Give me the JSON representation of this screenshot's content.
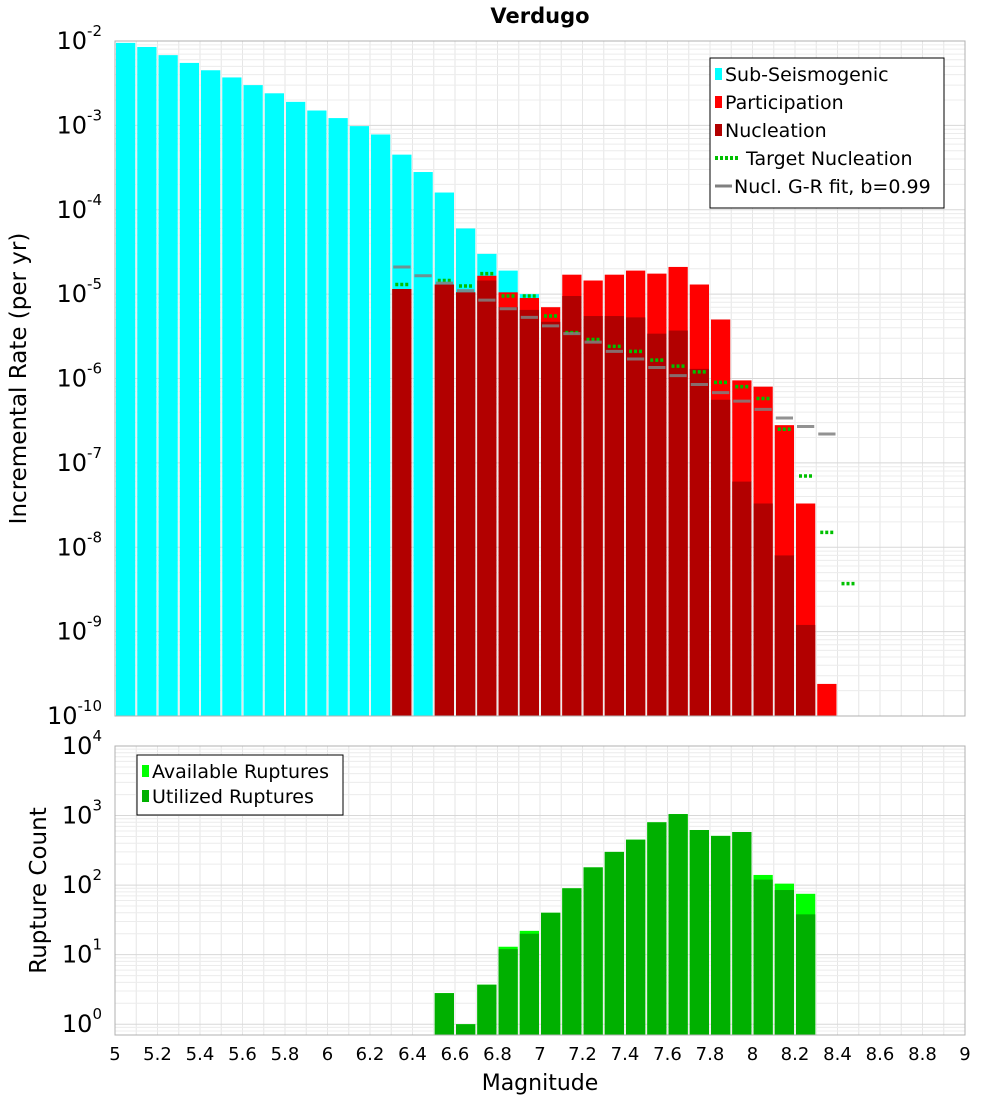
{
  "chart_data": [
    {
      "type": "bar",
      "title": "Verdugo",
      "xlabel": "",
      "ylabel": "Incremental Rate (per yr)",
      "yscale": "log",
      "xlim": [
        5,
        9
      ],
      "ylim": [
        1e-10,
        0.01
      ],
      "x_ticks": [
        "5",
        "5.2",
        "5.4",
        "5.6",
        "5.8",
        "6",
        "6.2",
        "6.4",
        "6.6",
        "6.8",
        "7",
        "7.2",
        "7.4",
        "7.6",
        "7.8",
        "8",
        "8.2",
        "8.4",
        "8.6",
        "8.8",
        "9"
      ],
      "y_tick_exponents": [
        "-10",
        "-9",
        "-8",
        "-7",
        "-6",
        "-5",
        "-4",
        "-3",
        "-2"
      ],
      "grid": true,
      "legend_position": "top-right",
      "legend": [
        {
          "label": "Sub-Seismogenic",
          "color": "#00ffff"
        },
        {
          "label": "Participation",
          "color": "#ff0000"
        },
        {
          "label": "Nucleation",
          "color": "#b20000"
        },
        {
          "label": "Target Nucleation",
          "color": "#00c000"
        },
        {
          "label": "Nucl. G-R fit, b=0.99",
          "color": "#808080"
        }
      ],
      "series": [
        {
          "name": "Sub-Seismogenic",
          "color": "#00ffff",
          "points": [
            [
              5.05,
              0.0095
            ],
            [
              5.15,
              0.0085
            ],
            [
              5.25,
              0.0068
            ],
            [
              5.35,
              0.0055
            ],
            [
              5.45,
              0.0045
            ],
            [
              5.55,
              0.0037
            ],
            [
              5.65,
              0.003
            ],
            [
              5.75,
              0.0024
            ],
            [
              5.85,
              0.0019
            ],
            [
              5.95,
              0.0015
            ],
            [
              6.05,
              0.00122
            ],
            [
              6.15,
              0.00098
            ],
            [
              6.25,
              0.00078
            ],
            [
              6.35,
              0.00045
            ],
            [
              6.45,
              0.00028
            ],
            [
              6.55,
              0.00016
            ],
            [
              6.65,
              6e-05
            ],
            [
              6.75,
              3e-05
            ],
            [
              6.85,
              1.9e-05
            ],
            [
              6.95,
              1e-05
            ]
          ]
        },
        {
          "name": "Participation",
          "color": "#ff0000",
          "points": [
            [
              6.35,
              1.15e-05
            ],
            [
              6.55,
              1.3e-05
            ],
            [
              6.65,
              1.05e-05
            ],
            [
              6.75,
              1.65e-05
            ],
            [
              6.85,
              1.05e-05
            ],
            [
              6.95,
              9e-06
            ],
            [
              7.05,
              7e-06
            ],
            [
              7.15,
              1.7e-05
            ],
            [
              7.25,
              1.45e-05
            ],
            [
              7.35,
              1.7e-05
            ],
            [
              7.45,
              1.9e-05
            ],
            [
              7.55,
              1.75e-05
            ],
            [
              7.65,
              2.1e-05
            ],
            [
              7.75,
              1.3e-05
            ],
            [
              7.85,
              5e-06
            ],
            [
              7.95,
              9.5e-07
            ],
            [
              8.05,
              8e-07
            ],
            [
              8.15,
              2.8e-07
            ],
            [
              8.25,
              3.3e-08
            ],
            [
              8.35,
              2.4e-10
            ]
          ]
        },
        {
          "name": "Nucleation",
          "color": "#b20000",
          "points": [
            [
              6.35,
              1.15e-05
            ],
            [
              6.55,
              1.3e-05
            ],
            [
              6.65,
              1.05e-05
            ],
            [
              6.75,
              1.45e-05
            ],
            [
              6.85,
              7e-06
            ],
            [
              6.95,
              6.5e-06
            ],
            [
              7.05,
              4.7e-06
            ],
            [
              7.15,
              9.5e-06
            ],
            [
              7.25,
              5.5e-06
            ],
            [
              7.35,
              5.5e-06
            ],
            [
              7.45,
              5.3e-06
            ],
            [
              7.55,
              3.4e-06
            ],
            [
              7.65,
              3.7e-06
            ],
            [
              7.75,
              1.3e-06
            ],
            [
              7.85,
              5.6e-07
            ],
            [
              7.95,
              6e-08
            ],
            [
              8.05,
              3.3e-08
            ],
            [
              8.15,
              8e-09
            ],
            [
              8.25,
              1.2e-09
            ]
          ]
        },
        {
          "name": "Target Nucleation",
          "color": "#00c000",
          "points": [
            [
              6.35,
              1.3e-05
            ],
            [
              6.55,
              1.45e-05
            ],
            [
              6.65,
              1.25e-05
            ],
            [
              6.75,
              1.75e-05
            ],
            [
              6.85,
              9.5e-06
            ],
            [
              6.95,
              9.5e-06
            ],
            [
              7.05,
              5.5e-06
            ],
            [
              7.15,
              3.5e-06
            ],
            [
              7.25,
              2.9e-06
            ],
            [
              7.35,
              2.4e-06
            ],
            [
              7.45,
              2.1e-06
            ],
            [
              7.55,
              1.65e-06
            ],
            [
              7.65,
              1.4e-06
            ],
            [
              7.75,
              1.2e-06
            ],
            [
              7.85,
              9e-07
            ],
            [
              7.95,
              8e-07
            ],
            [
              8.05,
              5.8e-07
            ],
            [
              8.15,
              2.5e-07
            ],
            [
              8.25,
              7e-08
            ],
            [
              8.35,
              1.5e-08
            ],
            [
              8.45,
              3.7e-09
            ]
          ]
        },
        {
          "name": "Nucl. G-R fit, b=0.99",
          "color": "#808080",
          "points": [
            [
              6.35,
              2.1e-05
            ],
            [
              6.45,
              1.65e-05
            ],
            [
              6.55,
              1.35e-05
            ],
            [
              6.65,
              1.1e-05
            ],
            [
              6.75,
              8.5e-06
            ],
            [
              6.85,
              6.7e-06
            ],
            [
              6.95,
              5.3e-06
            ],
            [
              7.05,
              4.2e-06
            ],
            [
              7.15,
              3.4e-06
            ],
            [
              7.25,
              2.7e-06
            ],
            [
              7.35,
              2.1e-06
            ],
            [
              7.45,
              1.7e-06
            ],
            [
              7.55,
              1.35e-06
            ],
            [
              7.65,
              1.08e-06
            ],
            [
              7.75,
              8.5e-07
            ],
            [
              7.85,
              6.8e-07
            ],
            [
              7.95,
              5.4e-07
            ],
            [
              8.05,
              4.3e-07
            ],
            [
              8.15,
              3.4e-07
            ],
            [
              8.25,
              2.7e-07
            ],
            [
              8.35,
              2.2e-07
            ]
          ]
        }
      ]
    },
    {
      "type": "bar",
      "title": "",
      "xlabel": "Magnitude",
      "ylabel": "Rupture Count",
      "yscale": "log",
      "xlim": [
        5,
        9
      ],
      "ylim": [
        0.7,
        10000
      ],
      "x_ticks": [
        "5",
        "5.2",
        "5.4",
        "5.6",
        "5.8",
        "6",
        "6.2",
        "6.4",
        "6.6",
        "6.8",
        "7",
        "7.2",
        "7.4",
        "7.6",
        "7.8",
        "8",
        "8.2",
        "8.4",
        "8.6",
        "8.8",
        "9"
      ],
      "y_tick_exponents": [
        "0",
        "1",
        "2",
        "3",
        "4"
      ],
      "grid": true,
      "legend_position": "top-left",
      "legend": [
        {
          "label": "Available Ruptures",
          "color": "#00ff00"
        },
        {
          "label": "Utilized Ruptures",
          "color": "#00b000"
        }
      ],
      "series": [
        {
          "name": "Available Ruptures",
          "color": "#00ff00",
          "points": [
            [
              6.55,
              2.8
            ],
            [
              6.65,
              1
            ],
            [
              6.75,
              3.7
            ],
            [
              6.85,
              13
            ],
            [
              6.95,
              22
            ],
            [
              7.05,
              40
            ],
            [
              7.15,
              90
            ],
            [
              7.25,
              180
            ],
            [
              7.35,
              300
            ],
            [
              7.45,
              450
            ],
            [
              7.55,
              800
            ],
            [
              7.65,
              1050
            ],
            [
              7.75,
              620
            ],
            [
              7.85,
              510
            ],
            [
              7.95,
              580
            ],
            [
              8.05,
              140
            ],
            [
              8.15,
              105
            ],
            [
              8.25,
              75
            ]
          ]
        },
        {
          "name": "Utilized Ruptures",
          "color": "#00b000",
          "points": [
            [
              6.55,
              2.8
            ],
            [
              6.65,
              1
            ],
            [
              6.75,
              3.7
            ],
            [
              6.85,
              12
            ],
            [
              6.95,
              20
            ],
            [
              7.05,
              40
            ],
            [
              7.15,
              90
            ],
            [
              7.25,
              180
            ],
            [
              7.35,
              300
            ],
            [
              7.45,
              450
            ],
            [
              7.55,
              800
            ],
            [
              7.65,
              1050
            ],
            [
              7.75,
              620
            ],
            [
              7.85,
              510
            ],
            [
              7.95,
              580
            ],
            [
              8.05,
              120
            ],
            [
              8.15,
              85
            ],
            [
              8.25,
              38
            ]
          ]
        }
      ]
    }
  ]
}
